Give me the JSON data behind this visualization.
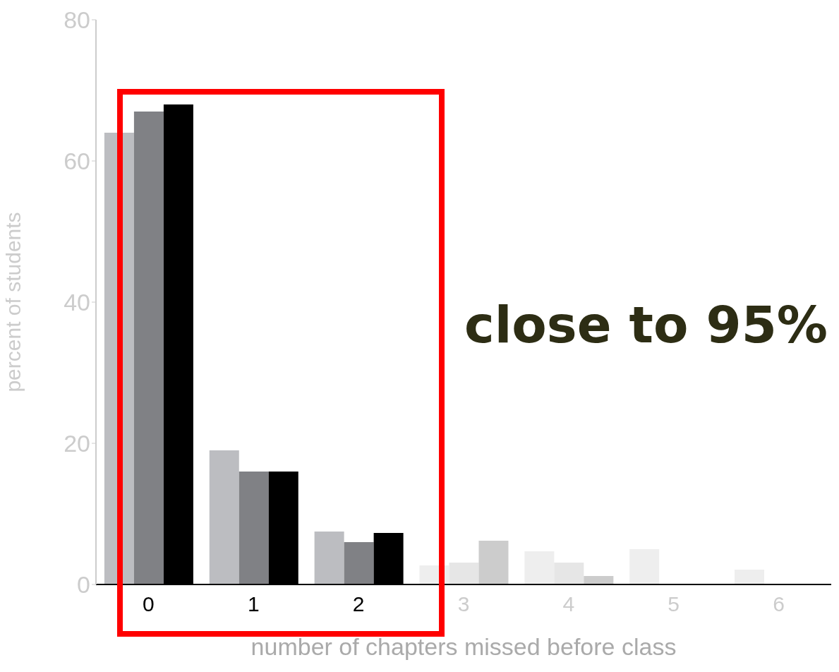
{
  "chart_data": {
    "type": "bar",
    "xlabel": "number of chapters missed before class",
    "ylabel": "percent of students",
    "categories": [
      "0",
      "1",
      "2",
      "3",
      "4",
      "5",
      "6"
    ],
    "series": [
      {
        "colors": [
          "#bcbdc1",
          "#bcbdc1",
          "#bcbdc1",
          "#eeeeee",
          "#eeeeee",
          "#eeeeee",
          "#eeeeee"
        ],
        "values": [
          64,
          19,
          7.5,
          2.7,
          4.7,
          5,
          2.1
        ]
      },
      {
        "colors": [
          "#808185",
          "#808185",
          "#808185",
          "#e6e6e6",
          "#e6e6e6",
          "#e6e6e6",
          "#e6e6e6"
        ],
        "values": [
          67,
          16,
          6,
          3.1,
          3.1,
          0,
          0
        ]
      },
      {
        "colors": [
          "#000000",
          "#000000",
          "#000000",
          "#cccccc",
          "#cccccc",
          "#cccccc",
          "#cccccc"
        ],
        "values": [
          68,
          16,
          7.3,
          6.2,
          1.2,
          0,
          0
        ]
      }
    ],
    "ylim": [
      0,
      80
    ],
    "yticks": [
      0,
      20,
      40,
      60,
      80
    ],
    "annotations": [
      {
        "text": "close to 95%"
      }
    ]
  }
}
